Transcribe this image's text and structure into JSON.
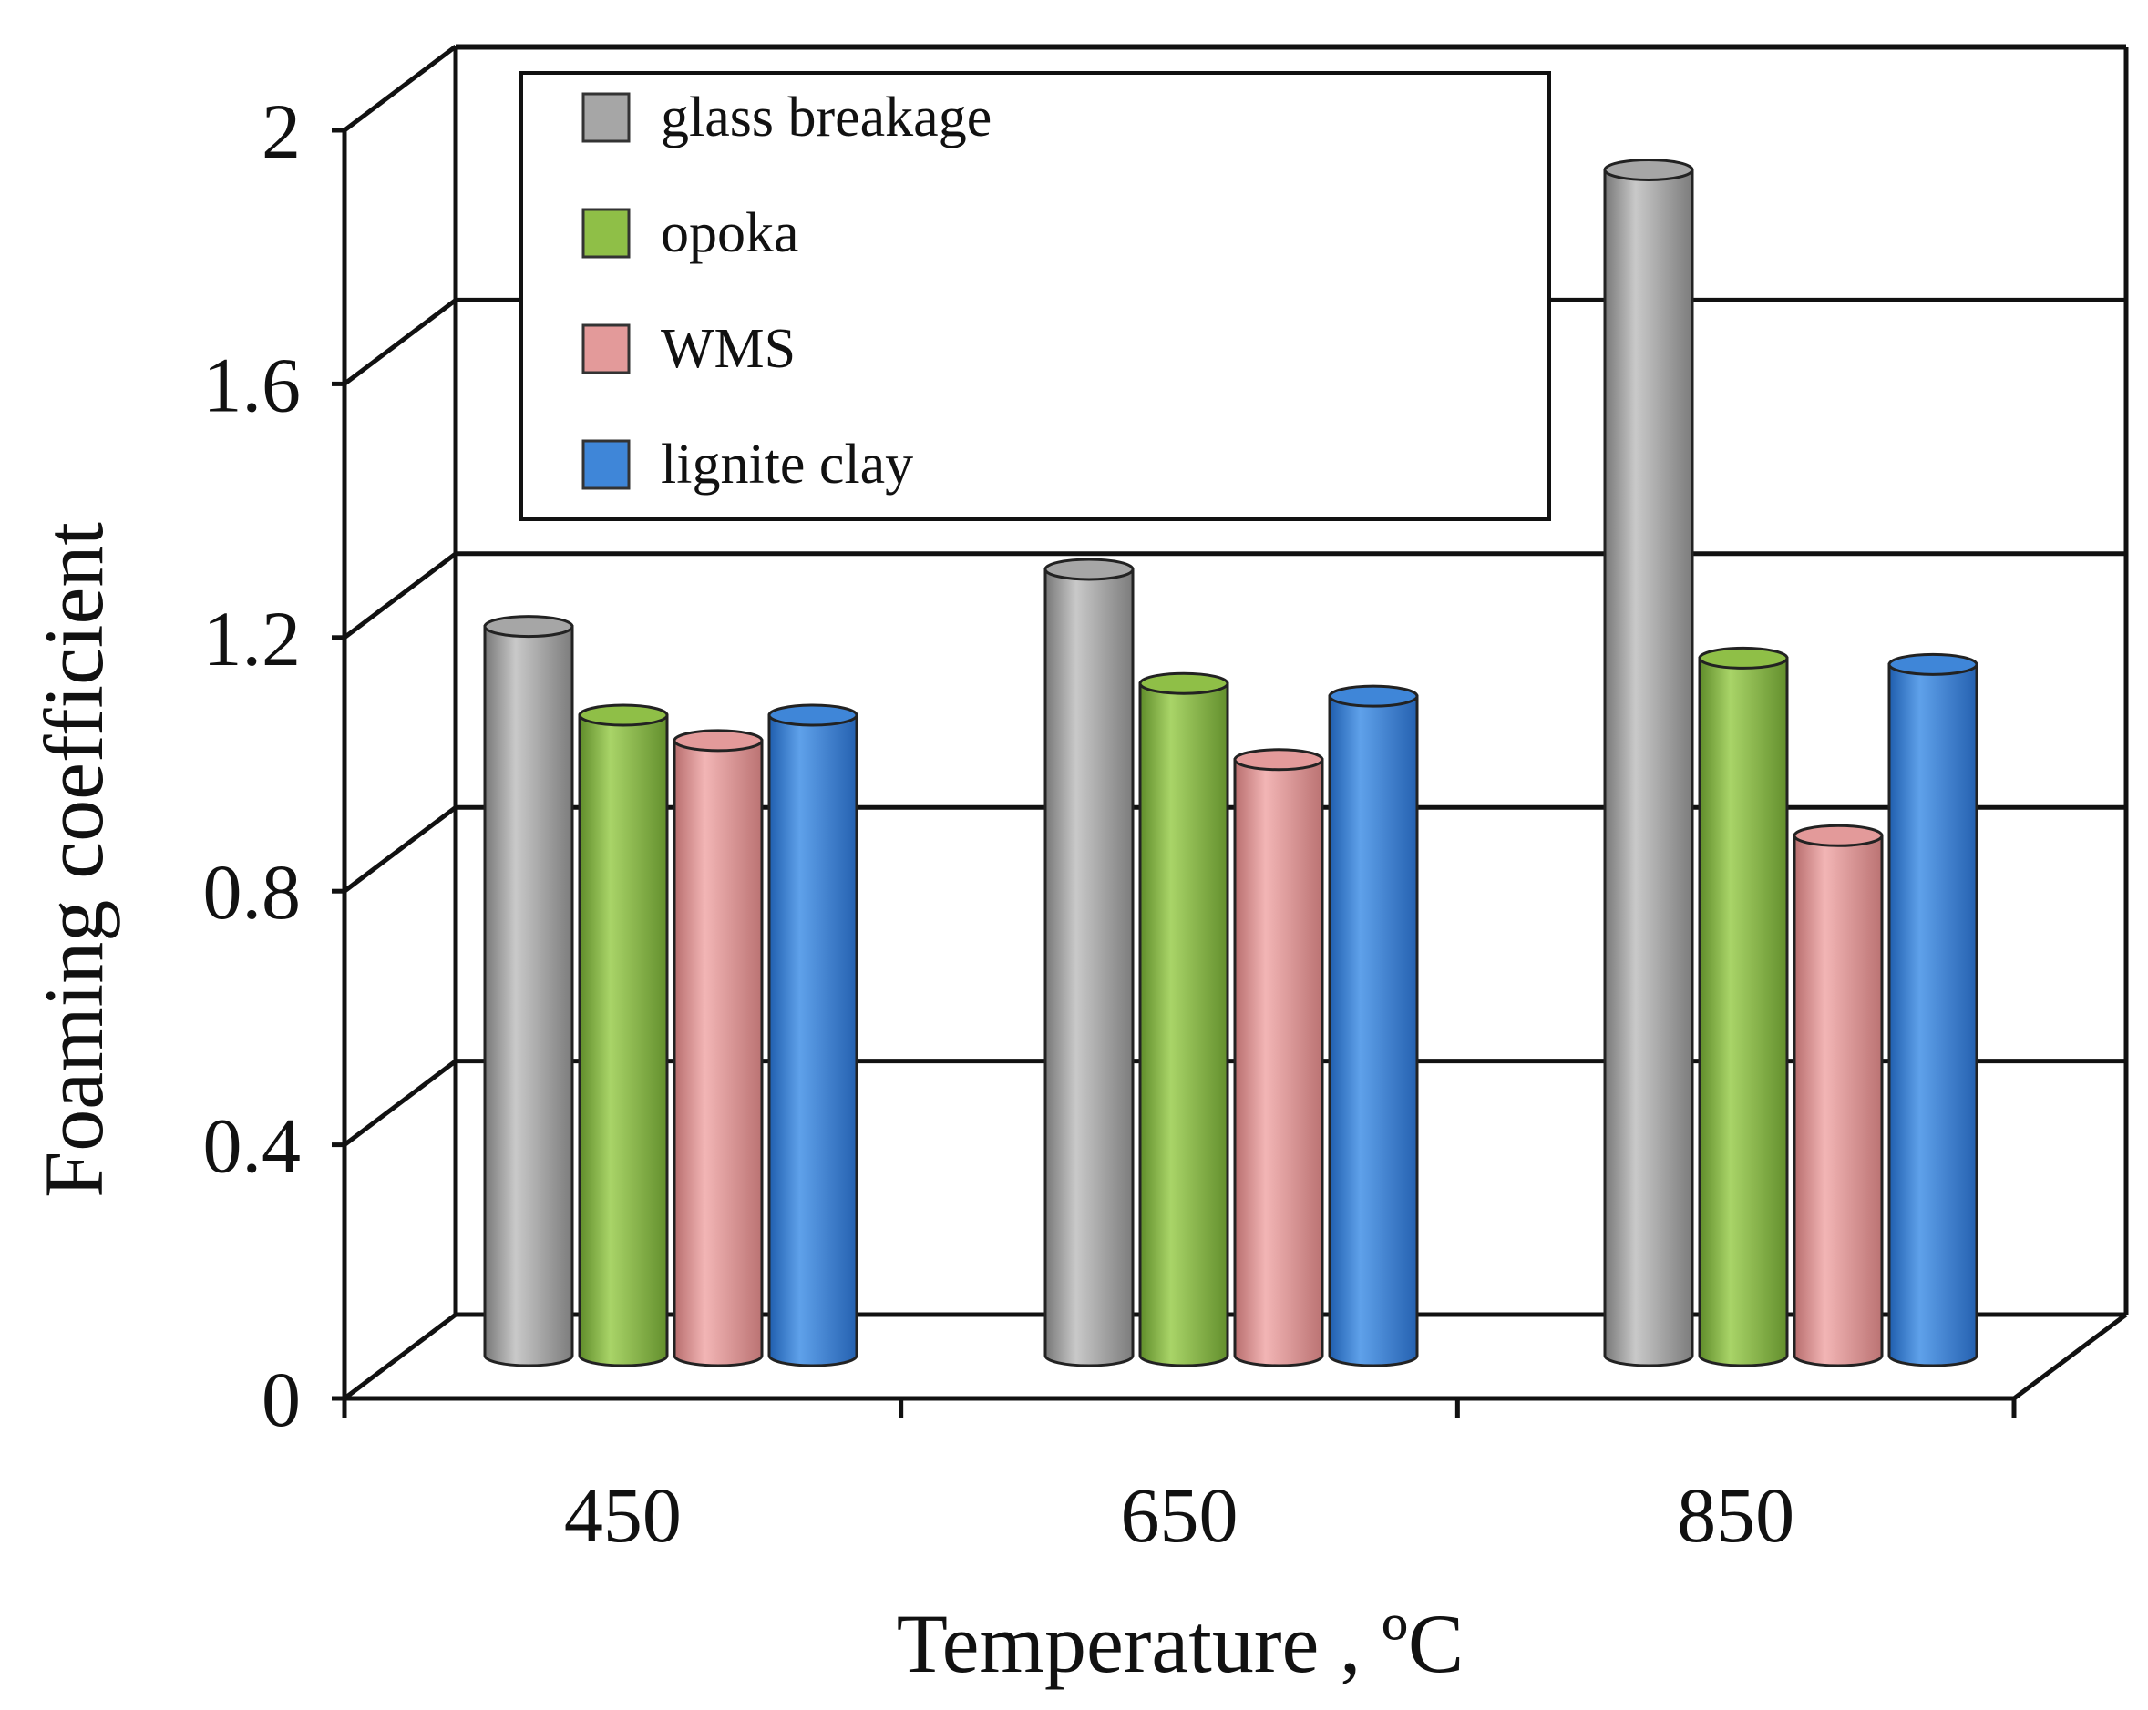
{
  "chart_data": {
    "type": "bar",
    "style": "3d-cylinder",
    "title": "",
    "xlabel": "Temperature , ºC",
    "ylabel": "Foaming coefficient",
    "categories": [
      "450",
      "650",
      "850"
    ],
    "yticks": [
      "0",
      "0.4",
      "0.8",
      "1.2",
      "1.6",
      "2"
    ],
    "ylim": [
      0,
      2
    ],
    "grid": true,
    "legend_position": "top-left",
    "series": [
      {
        "name": "glass breakage",
        "color": "#a6a6a6",
        "values": [
          1.15,
          1.24,
          1.87
        ]
      },
      {
        "name": "opoka",
        "color": "#8fbf47",
        "values": [
          1.01,
          1.06,
          1.1
        ]
      },
      {
        "name": "WMS",
        "color": "#e39a9a",
        "values": [
          0.97,
          0.94,
          0.82
        ]
      },
      {
        "name": "lignite clay",
        "color": "#3f86d8",
        "values": [
          1.01,
          1.04,
          1.09
        ]
      }
    ]
  }
}
